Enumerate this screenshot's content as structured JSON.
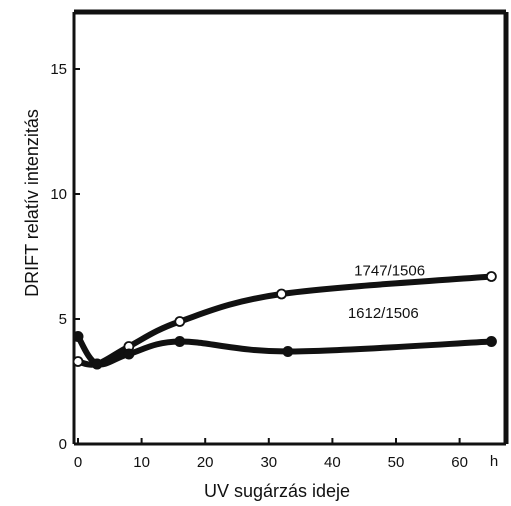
{
  "chart_data": {
    "type": "line",
    "xlabel": "UV sugárzás ideje",
    "ylabel": "DRIFT relatív intenzitás",
    "x_unit": "h",
    "xlim": [
      0,
      67
    ],
    "ylim": [
      0,
      16.5
    ],
    "xticks": [
      0,
      10,
      20,
      30,
      40,
      50,
      60
    ],
    "yticks": [
      0,
      5,
      10,
      15
    ],
    "grid": false,
    "series": [
      {
        "name": "1747/1506",
        "marker": "open-circle",
        "x": [
          0,
          3,
          8,
          16,
          32,
          65
        ],
        "y": [
          3.3,
          3.2,
          3.9,
          4.9,
          6.0,
          6.7
        ]
      },
      {
        "name": "1612/1506",
        "marker": "filled-circle",
        "x": [
          0,
          3,
          8,
          16,
          33,
          65
        ],
        "y": [
          4.3,
          3.2,
          3.6,
          4.1,
          3.7,
          4.1
        ]
      }
    ],
    "colors": {
      "ink": "#111111",
      "background": "#ffffff"
    }
  }
}
